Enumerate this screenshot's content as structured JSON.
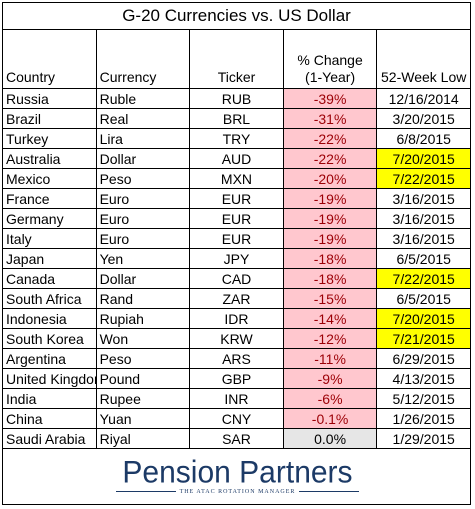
{
  "title": "G-20 Currencies vs. US Dollar",
  "headers": {
    "country": "Country",
    "currency": "Currency",
    "ticker": "Ticker",
    "change_line1": "% Change",
    "change_line2": "(1-Year)",
    "low": "52-Week Low"
  },
  "rows": [
    {
      "country": "Russia",
      "currency": "Ruble",
      "ticker": "RUB",
      "change": "-39%",
      "low": "12/16/2014",
      "low_highlight": false
    },
    {
      "country": "Brazil",
      "currency": "Real",
      "ticker": "BRL",
      "change": "-31%",
      "low": "3/20/2015",
      "low_highlight": false
    },
    {
      "country": "Turkey",
      "currency": "Lira",
      "ticker": "TRY",
      "change": "-22%",
      "low": "6/8/2015",
      "low_highlight": false
    },
    {
      "country": "Australia",
      "currency": "Dollar",
      "ticker": "AUD",
      "change": "-22%",
      "low": "7/20/2015",
      "low_highlight": true
    },
    {
      "country": "Mexico",
      "currency": "Peso",
      "ticker": "MXN",
      "change": "-20%",
      "low": "7/22/2015",
      "low_highlight": true
    },
    {
      "country": "France",
      "currency": "Euro",
      "ticker": "EUR",
      "change": "-19%",
      "low": "3/16/2015",
      "low_highlight": false
    },
    {
      "country": "Germany",
      "currency": "Euro",
      "ticker": "EUR",
      "change": "-19%",
      "low": "3/16/2015",
      "low_highlight": false
    },
    {
      "country": "Italy",
      "currency": "Euro",
      "ticker": "EUR",
      "change": "-19%",
      "low": "3/16/2015",
      "low_highlight": false
    },
    {
      "country": "Japan",
      "currency": "Yen",
      "ticker": "JPY",
      "change": "-18%",
      "low": "6/5/2015",
      "low_highlight": false
    },
    {
      "country": "Canada",
      "currency": "Dollar",
      "ticker": "CAD",
      "change": "-18%",
      "low": "7/22/2015",
      "low_highlight": true
    },
    {
      "country": "South Africa",
      "currency": "Rand",
      "ticker": "ZAR",
      "change": "-15%",
      "low": "6/5/2015",
      "low_highlight": false
    },
    {
      "country": "Indonesia",
      "currency": "Rupiah",
      "ticker": "IDR",
      "change": "-14%",
      "low": "7/20/2015",
      "low_highlight": true
    },
    {
      "country": "South Korea",
      "currency": "Won",
      "ticker": "KRW",
      "change": "-12%",
      "low": "7/21/2015",
      "low_highlight": true
    },
    {
      "country": "Argentina",
      "currency": "Peso",
      "ticker": "ARS",
      "change": "-11%",
      "low": "6/29/2015",
      "low_highlight": false
    },
    {
      "country": "United Kingdom",
      "currency": "Pound",
      "ticker": "GBP",
      "change": "-9%",
      "low": "4/13/2015",
      "low_highlight": false
    },
    {
      "country": "India",
      "currency": "Rupee",
      "ticker": "INR",
      "change": "-6%",
      "low": "5/12/2015",
      "low_highlight": false
    },
    {
      "country": "China",
      "currency": "Yuan",
      "ticker": "CNY",
      "change": "-0.1%",
      "low": "1/26/2015",
      "low_highlight": false
    },
    {
      "country": "Saudi Arabia",
      "currency": "Riyal",
      "ticker": "SAR",
      "change": "0.0%",
      "low": "1/29/2015",
      "low_highlight": false
    }
  ],
  "logo": {
    "name": "Pension Partners",
    "tagline": "THE ATAC ROTATION MANAGER"
  },
  "colors": {
    "negative_fill": "#ffc7ce",
    "negative_text": "#9c0006",
    "neutral_fill": "#e6e6e6",
    "highlight": "#ffff00",
    "logo": "#1c3a66"
  }
}
